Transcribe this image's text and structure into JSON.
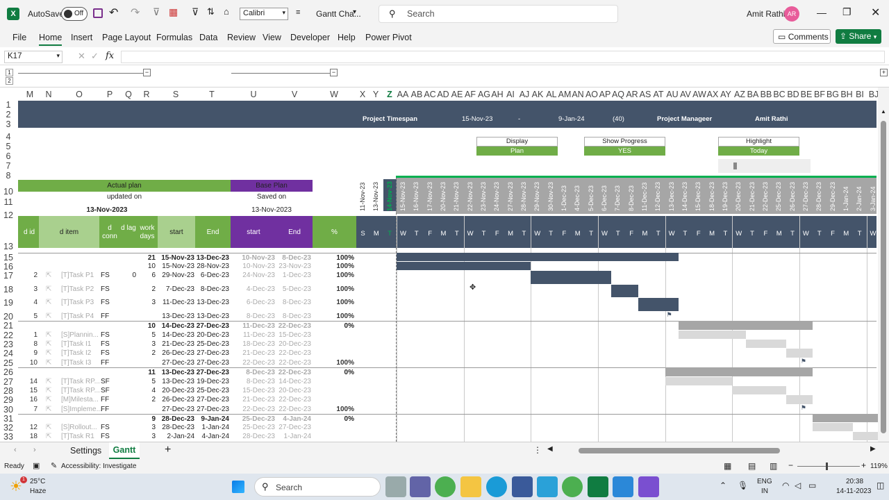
{
  "titlebar": {
    "autosave": "AutoSave",
    "toggle": "Off",
    "font": "Calibri",
    "filename": "Gantt Cha...",
    "search": "Search",
    "user": "Amit Rathi",
    "initials": "AR"
  },
  "ribbon": {
    "tabs": [
      "File",
      "Home",
      "Insert",
      "Page Layout",
      "Formulas",
      "Data",
      "Review",
      "View",
      "Developer",
      "Help",
      "Power Pivot"
    ],
    "comments": "Comments",
    "share": "Share"
  },
  "formula": {
    "namebox": "K17",
    "fx": "fx"
  },
  "columns": [
    "M",
    "N",
    "O",
    "P",
    "Q",
    "R",
    "S",
    "T",
    "U",
    "V",
    "W",
    "X",
    "Y",
    "Z",
    "AA",
    "AB",
    "AC",
    "AD",
    "AE",
    "AF",
    "AG",
    "AH",
    "AI",
    "AJ",
    "AK",
    "AL",
    "AM",
    "AN",
    "AO",
    "AP",
    "AQ",
    "AR",
    "AS",
    "AT",
    "AU",
    "AV",
    "AW",
    "AX",
    "AY",
    "AZ",
    "BA",
    "BB",
    "BC",
    "BD",
    "BE",
    "BF",
    "BG",
    "BH",
    "BI",
    "BJ"
  ],
  "header": {
    "timespan_label": "Project Timespan",
    "start": "15-Nov-23",
    "dash": "-",
    "end": "9-Jan-24",
    "days": "(40)",
    "pm_label": "Project Manageer",
    "pm": "Amit Rathi"
  },
  "controls": {
    "display_label": "Display",
    "display_value": "Plan",
    "progress_label": "Show Progress",
    "progress_value": "YES",
    "highlight_label": "Highlight",
    "highlight_value": "Today"
  },
  "plan": {
    "actual": "Actual plan",
    "updated": "updated on",
    "updated_date": "13-Nov-2023",
    "base": "Base Plan",
    "saved": "Saved on",
    "saved_date": "13-Nov-2023"
  },
  "table_headers": {
    "id": "d id",
    "item": "d item",
    "conn": "d conn",
    "lag": "d lag",
    "workdays": "work days",
    "start": "start",
    "end": "End",
    "bstart": "start",
    "bend": "End",
    "pct": "%"
  },
  "dates": [
    "11-Nov-23",
    "13-Nov-23",
    "14-Nov-23",
    "15-Nov-23",
    "16-Nov-23",
    "17-Nov-23",
    "20-Nov-23",
    "21-Nov-23",
    "22-Nov-23",
    "23-Nov-23",
    "24-Nov-23",
    "27-Nov-23",
    "28-Nov-23",
    "29-Nov-23",
    "30-Nov-23",
    "1-Dec-23",
    "4-Dec-23",
    "5-Dec-23",
    "6-Dec-23",
    "7-Dec-23",
    "8-Dec-23",
    "11-Dec-23",
    "12-Dec-23",
    "13-Dec-23",
    "14-Dec-23",
    "15-Dec-23",
    "18-Dec-23",
    "19-Dec-23",
    "20-Dec-23",
    "21-Dec-23",
    "22-Dec-23",
    "25-Dec-23",
    "26-Dec-23",
    "27-Dec-23",
    "28-Dec-23",
    "29-Dec-23",
    "1-Jan-24",
    "2-Jan-24",
    "3-Jan-24"
  ],
  "days": [
    "S",
    "M",
    "T",
    "W",
    "T",
    "F",
    "M",
    "T",
    "W",
    "T",
    "F",
    "M",
    "T",
    "W",
    "T",
    "F",
    "M",
    "T",
    "W",
    "T",
    "F",
    "M",
    "T",
    "W",
    "T",
    "F",
    "M",
    "T",
    "W",
    "T",
    "F",
    "M",
    "T",
    "W",
    "T",
    "F",
    "M",
    "T",
    "W"
  ],
  "rows": [
    {
      "r": "15",
      "id": "",
      "item": "",
      "conn": "",
      "lag": "",
      "wd": "21",
      "s": "15-Nov-23",
      "e": "13-Dec-23",
      "bs": "10-Nov-23",
      "be": "8-Dec-23",
      "p": "100%",
      "bold": true
    },
    {
      "r": "16",
      "id": "",
      "item": "",
      "conn": "",
      "lag": "",
      "wd": "10",
      "s": "15-Nov-23",
      "e": "28-Nov-23",
      "bs": "10-Nov-23",
      "be": "23-Nov-23",
      "p": "100%"
    },
    {
      "r": "17",
      "id": "2",
      "item": "[T]Task P1",
      "conn": "FS",
      "lag": "0",
      "wd": "6",
      "s": "29-Nov-23",
      "e": "6-Dec-23",
      "bs": "24-Nov-23",
      "be": "1-Dec-23",
      "p": "100%"
    },
    {
      "r": "18",
      "id": "3",
      "item": "[T]Task P2",
      "conn": "FS",
      "lag": "",
      "wd": "2",
      "s": "7-Dec-23",
      "e": "8-Dec-23",
      "bs": "4-Dec-23",
      "be": "5-Dec-23",
      "p": "100%"
    },
    {
      "r": "19",
      "id": "4",
      "item": "[T]Task P3",
      "conn": "FS",
      "lag": "",
      "wd": "3",
      "s": "11-Dec-23",
      "e": "13-Dec-23",
      "bs": "6-Dec-23",
      "be": "8-Dec-23",
      "p": "100%"
    },
    {
      "r": "20",
      "id": "5",
      "item": "[T]Task P4",
      "conn": "FF",
      "lag": "",
      "wd": "",
      "s": "13-Dec-23",
      "e": "13-Dec-23",
      "bs": "8-Dec-23",
      "be": "8-Dec-23",
      "p": "100%"
    },
    {
      "r": "21",
      "id": "",
      "item": "",
      "conn": "",
      "lag": "",
      "wd": "10",
      "s": "14-Dec-23",
      "e": "27-Dec-23",
      "bs": "11-Dec-23",
      "be": "22-Dec-23",
      "p": "0%",
      "bold": true
    },
    {
      "r": "22",
      "id": "1",
      "item": "[S]Plannin...",
      "conn": "FS",
      "lag": "",
      "wd": "5",
      "s": "14-Dec-23",
      "e": "20-Dec-23",
      "bs": "11-Dec-23",
      "be": "15-Dec-23",
      "p": ""
    },
    {
      "r": "23",
      "id": "8",
      "item": "[T]Task I1",
      "conn": "FS",
      "lag": "",
      "wd": "3",
      "s": "21-Dec-23",
      "e": "25-Dec-23",
      "bs": "18-Dec-23",
      "be": "20-Dec-23",
      "p": ""
    },
    {
      "r": "24",
      "id": "9",
      "item": "[T]Task I2",
      "conn": "FS",
      "lag": "",
      "wd": "2",
      "s": "26-Dec-23",
      "e": "27-Dec-23",
      "bs": "21-Dec-23",
      "be": "22-Dec-23",
      "p": ""
    },
    {
      "r": "25",
      "id": "10",
      "item": "[T]Task I3",
      "conn": "FF",
      "lag": "",
      "wd": "",
      "s": "27-Dec-23",
      "e": "27-Dec-23",
      "bs": "22-Dec-23",
      "be": "22-Dec-23",
      "p": "100%"
    },
    {
      "r": "26",
      "id": "",
      "item": "",
      "conn": "",
      "lag": "",
      "wd": "11",
      "s": "13-Dec-23",
      "e": "27-Dec-23",
      "bs": "8-Dec-23",
      "be": "22-Dec-23",
      "p": "0%",
      "bold": true
    },
    {
      "r": "27",
      "id": "14",
      "item": "[T]Task RP...",
      "conn": "SF",
      "lag": "",
      "wd": "5",
      "s": "13-Dec-23",
      "e": "19-Dec-23",
      "bs": "8-Dec-23",
      "be": "14-Dec-23",
      "p": ""
    },
    {
      "r": "28",
      "id": "15",
      "item": "[T]Task RP...",
      "conn": "SF",
      "lag": "",
      "wd": "4",
      "s": "20-Dec-23",
      "e": "25-Dec-23",
      "bs": "15-Dec-23",
      "be": "20-Dec-23",
      "p": ""
    },
    {
      "r": "29",
      "id": "16",
      "item": "[M]Milesta...",
      "conn": "FF",
      "lag": "",
      "wd": "2",
      "s": "26-Dec-23",
      "e": "27-Dec-23",
      "bs": "21-Dec-23",
      "be": "22-Dec-23",
      "p": ""
    },
    {
      "r": "30",
      "id": "7",
      "item": "[S]Impleme...",
      "conn": "FF",
      "lag": "",
      "wd": "",
      "s": "27-Dec-23",
      "e": "27-Dec-23",
      "bs": "22-Dec-23",
      "be": "22-Dec-23",
      "p": "100%"
    },
    {
      "r": "31",
      "id": "",
      "item": "",
      "conn": "",
      "lag": "",
      "wd": "9",
      "s": "28-Dec-23",
      "e": "9-Jan-24",
      "bs": "25-Dec-23",
      "be": "4-Jan-24",
      "p": "0%",
      "bold": true
    },
    {
      "r": "32",
      "id": "12",
      "item": "[S]Rollout...",
      "conn": "FS",
      "lag": "",
      "wd": "3",
      "s": "28-Dec-23",
      "e": "1-Jan-24",
      "bs": "25-Dec-23",
      "be": "27-Dec-23",
      "p": ""
    },
    {
      "r": "33",
      "id": "18",
      "item": "[T]Task R1",
      "conn": "FS",
      "lag": "",
      "wd": "3",
      "s": "2-Jan-24",
      "e": "4-Jan-24",
      "bs": "28-Dec-23",
      "be": "1-Jan-24",
      "p": ""
    }
  ],
  "sheets": {
    "tab1": "Settings",
    "tab2": "Gantt"
  },
  "status": {
    "ready": "Ready",
    "accessibility": "Accessibility: Investigate",
    "zoom": "119%"
  },
  "taskbar": {
    "temp": "25°C",
    "weather": "Haze",
    "search": "Search",
    "lang1": "ENG",
    "lang2": "IN",
    "time": "20:38",
    "date": "14-11-2023"
  }
}
